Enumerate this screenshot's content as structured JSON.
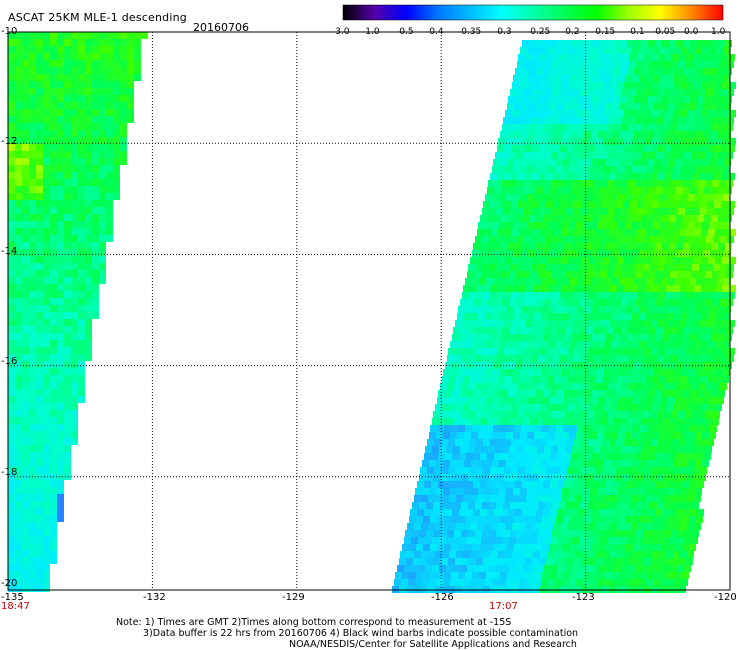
{
  "header": {
    "title": "ASCAT 25KM MLE-1 descending",
    "date": "20160706"
  },
  "colorbar": {
    "labels": [
      "-3.0",
      "-1.0",
      "-0.5",
      "-0.4",
      "-0.35",
      "-0.3",
      "-0.25",
      "-0.2",
      "-0.15",
      "-0.1",
      "-0.05",
      "0.0",
      "1.0"
    ],
    "colors": [
      "#000000",
      "#5500aa",
      "#0000ff",
      "#0077ff",
      "#00bbff",
      "#00ffff",
      "#00ffaa",
      "#00ff55",
      "#00ff00",
      "#99ff00",
      "#ffff00",
      "#ff8800",
      "#ff0000"
    ]
  },
  "axes": {
    "y_labels": [
      "-10",
      "-12",
      "-14",
      "-16",
      "-18",
      "-20"
    ],
    "x_labels": [
      "-135",
      "-132",
      "-129",
      "-126",
      "-123",
      "-120"
    ],
    "times": [
      "18:47",
      "17:07"
    ]
  },
  "notes": {
    "line1": "Note: 1) Times are GMT 2)Times along bottom correspond to measurement at -15S",
    "line2": "3)Data buffer is 22 hrs from 20160706 4) Black wind barbs indicate possible contamination",
    "line3": "NOAA/NESDIS/Center for Satellite Applications and Research"
  },
  "swaths": {
    "west": {
      "time": "18:47",
      "lon_range": [
        -135,
        -132.2
      ],
      "lat_range": [
        -10,
        -20
      ]
    },
    "east": {
      "time": "17:07",
      "lon_range": [
        -126.8,
        -120.2
      ],
      "lat_range": [
        -10.6,
        -20
      ]
    }
  }
}
